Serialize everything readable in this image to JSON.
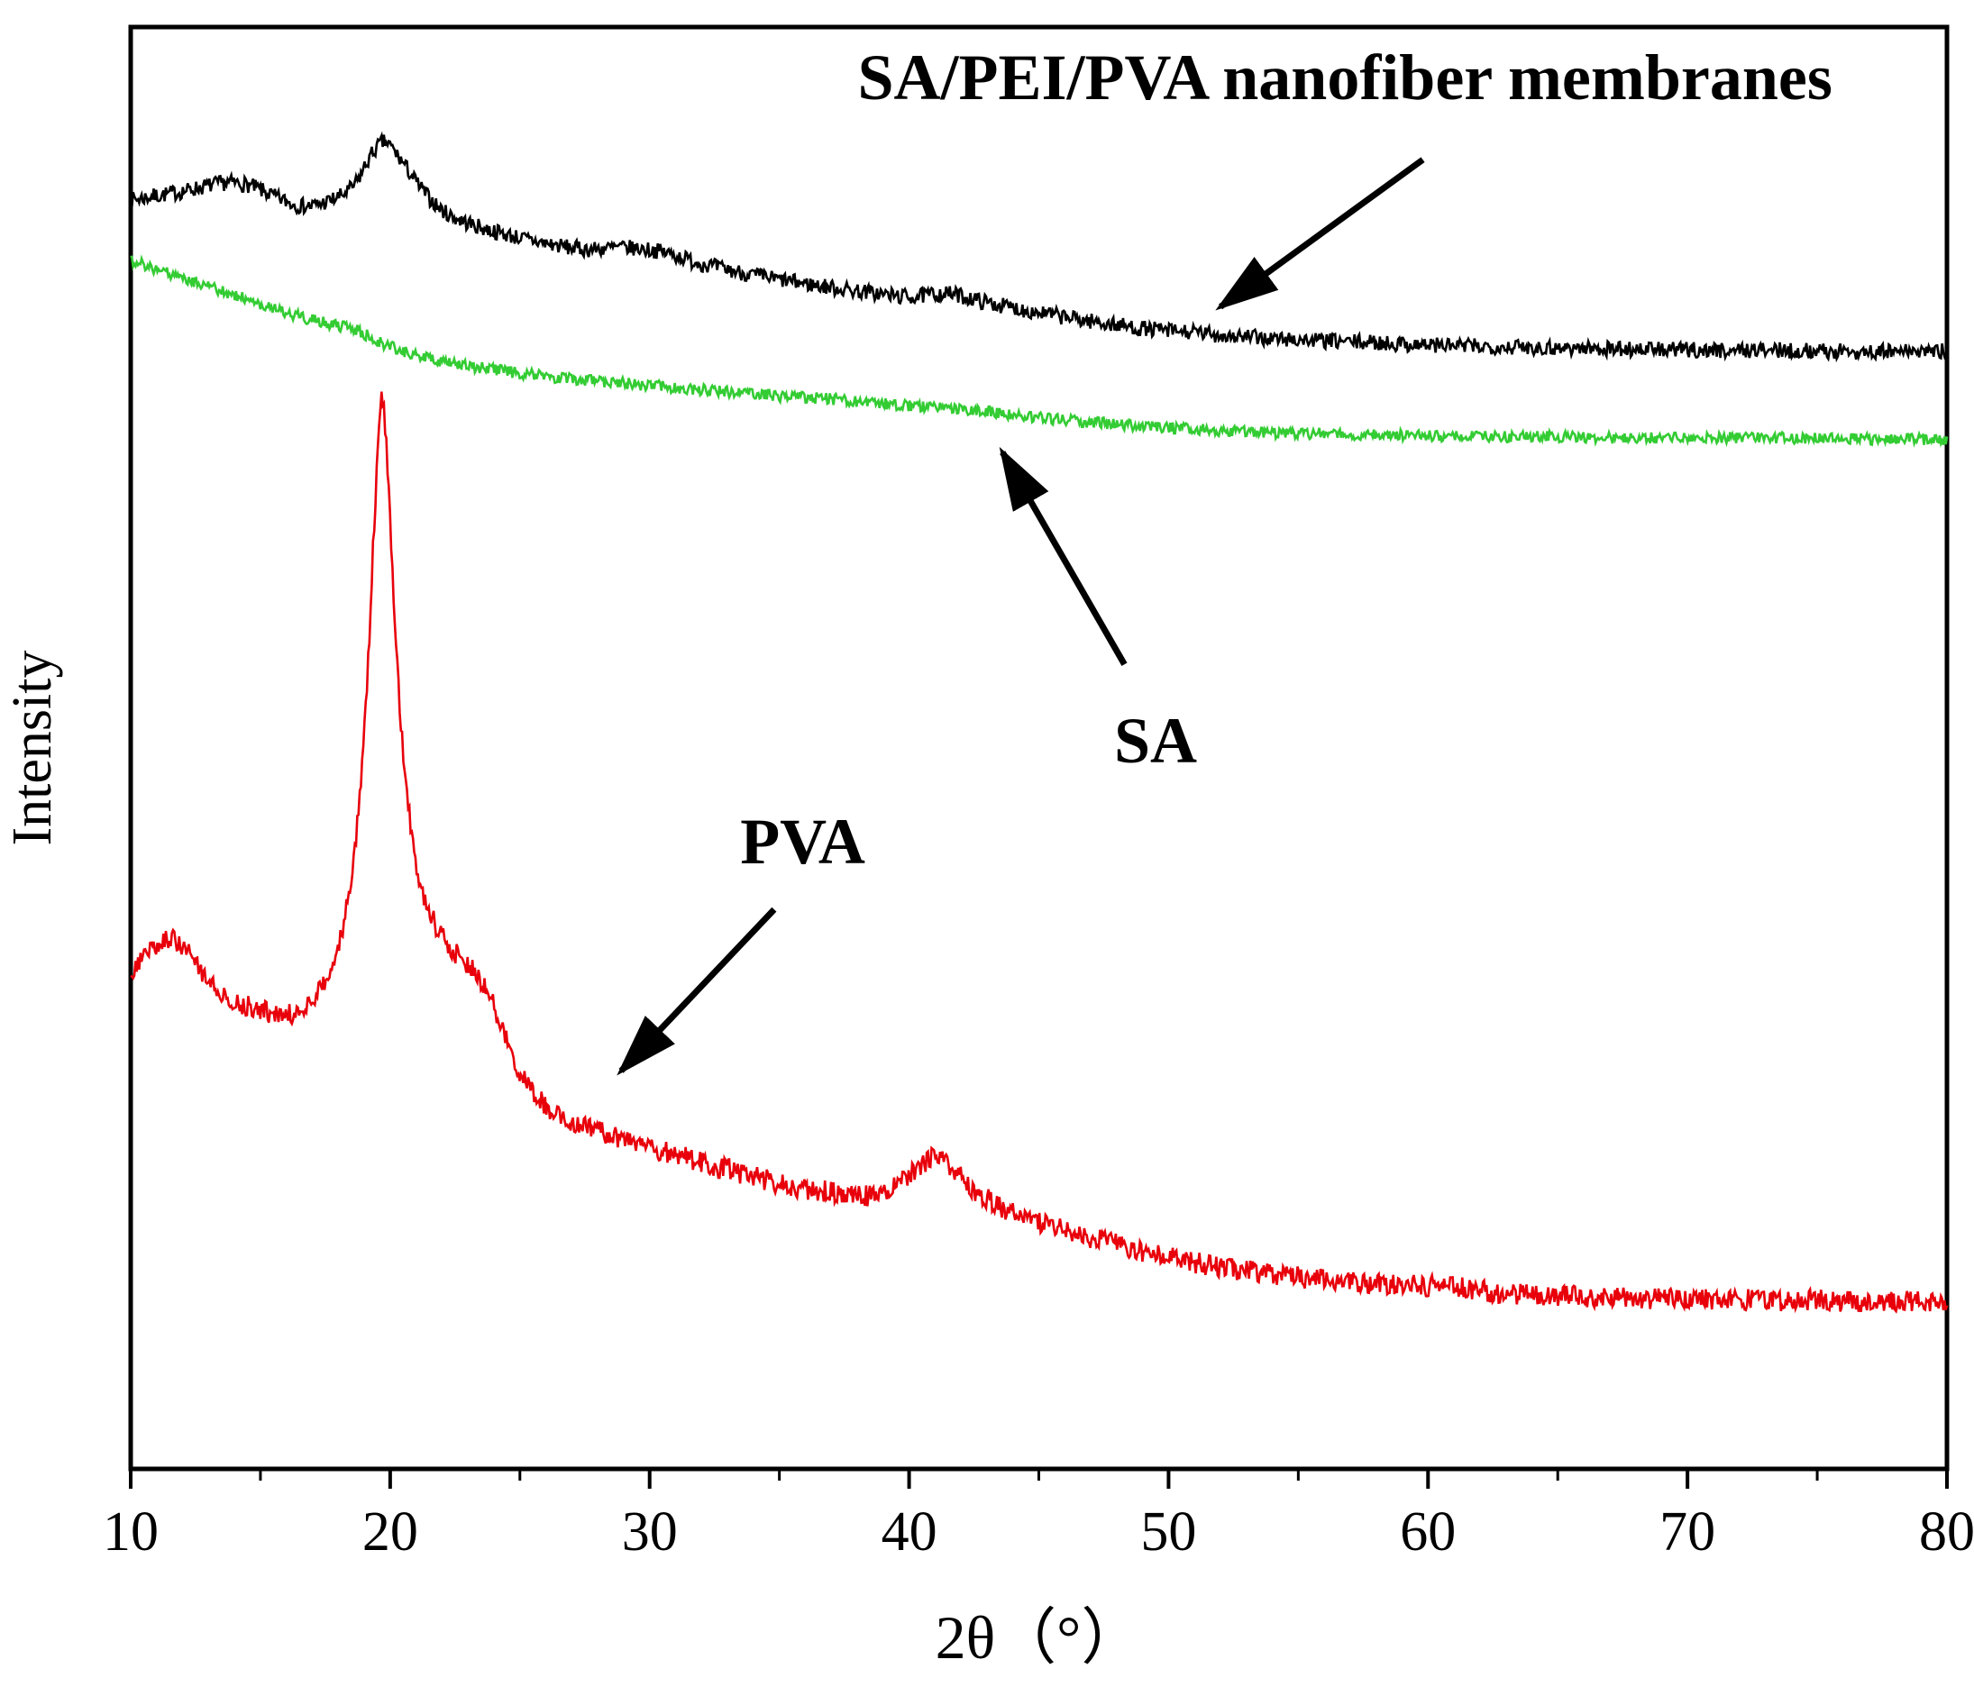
{
  "figure": {
    "background": "#ffffff"
  },
  "chart_data": {
    "type": "line",
    "title": "",
    "xlabel": "2θ（°）",
    "ylabel": "Intensity",
    "xlim": [
      10,
      80
    ],
    "ylim": [
      0,
      100
    ],
    "x_ticks": [
      10,
      20,
      30,
      40,
      50,
      60,
      70,
      80
    ],
    "x_minor_ticks": [
      15,
      25,
      35,
      45,
      55,
      65,
      75
    ],
    "grid": false,
    "legend_position": "none",
    "axis_color": "#000000",
    "series": [
      {
        "id": "sa-pei-pva",
        "name": "SA/PEI/PVA nanofiber membranes",
        "color": "#000000",
        "noise": 0.55,
        "points": [
          [
            10,
            88.0
          ],
          [
            11,
            88.3
          ],
          [
            12,
            88.6
          ],
          [
            13,
            89.0
          ],
          [
            13.8,
            89.2
          ],
          [
            14.6,
            89.0
          ],
          [
            15.6,
            88.2
          ],
          [
            16.6,
            87.6
          ],
          [
            17.6,
            87.9
          ],
          [
            18.6,
            89.0
          ],
          [
            19.3,
            91.2
          ],
          [
            19.8,
            92.0
          ],
          [
            20.4,
            90.8
          ],
          [
            21.2,
            88.8
          ],
          [
            22,
            87.3
          ],
          [
            23,
            86.4
          ],
          [
            24.5,
            85.6
          ],
          [
            26,
            85.0
          ],
          [
            27.5,
            84.6
          ],
          [
            29,
            84.7
          ],
          [
            30.5,
            84.4
          ],
          [
            32,
            83.6
          ],
          [
            34,
            82.8
          ],
          [
            36,
            82.2
          ],
          [
            38,
            81.7
          ],
          [
            40,
            81.3
          ],
          [
            41.5,
            81.5
          ],
          [
            43,
            80.9
          ],
          [
            45,
            80.2
          ],
          [
            47,
            79.6
          ],
          [
            49,
            79.1
          ],
          [
            51,
            78.8
          ],
          [
            53,
            78.5
          ],
          [
            55,
            78.3
          ],
          [
            58,
            78.1
          ],
          [
            61,
            77.9
          ],
          [
            64,
            77.8
          ],
          [
            67,
            77.7
          ],
          [
            70,
            77.6
          ],
          [
            73,
            77.6
          ],
          [
            76,
            77.5
          ],
          [
            80,
            77.5
          ]
        ]
      },
      {
        "id": "sa",
        "name": "SA",
        "color": "#33cc33",
        "noise": 0.4,
        "points": [
          [
            10,
            83.8
          ],
          [
            11,
            83.2
          ],
          [
            12,
            82.6
          ],
          [
            13,
            82.0
          ],
          [
            14,
            81.4
          ],
          [
            15,
            80.8
          ],
          [
            16,
            80.2
          ],
          [
            17,
            79.7
          ],
          [
            18,
            79.3
          ],
          [
            18.8,
            78.9
          ],
          [
            19.5,
            78.2
          ],
          [
            20.5,
            77.5
          ],
          [
            21.5,
            77.0
          ],
          [
            23,
            76.5
          ],
          [
            25,
            76.0
          ],
          [
            27,
            75.6
          ],
          [
            29,
            75.3
          ],
          [
            31,
            75.0
          ],
          [
            33,
            74.7
          ],
          [
            35,
            74.4
          ],
          [
            37,
            74.2
          ],
          [
            39,
            73.9
          ],
          [
            41,
            73.6
          ],
          [
            43,
            73.3
          ],
          [
            45,
            72.9
          ],
          [
            47,
            72.6
          ],
          [
            49,
            72.3
          ],
          [
            51,
            72.1
          ],
          [
            53,
            71.9
          ],
          [
            56,
            71.8
          ],
          [
            59,
            71.7
          ],
          [
            62,
            71.6
          ],
          [
            65,
            71.6
          ],
          [
            68,
            71.5
          ],
          [
            71,
            71.5
          ],
          [
            74,
            71.5
          ],
          [
            77,
            71.4
          ],
          [
            80,
            71.4
          ]
        ]
      },
      {
        "id": "pva",
        "name": "PVA",
        "color": "#e8000b",
        "noise": 0.75,
        "points": [
          [
            10,
            34.5
          ],
          [
            10.8,
            36.0
          ],
          [
            11.5,
            36.8
          ],
          [
            12.2,
            35.8
          ],
          [
            13,
            34.0
          ],
          [
            14,
            32.5
          ],
          [
            15,
            31.8
          ],
          [
            16,
            31.5
          ],
          [
            17,
            32.5
          ],
          [
            17.8,
            35.0
          ],
          [
            18.4,
            40.0
          ],
          [
            18.9,
            48.0
          ],
          [
            19.2,
            58.0
          ],
          [
            19.45,
            68.0
          ],
          [
            19.65,
            74.0
          ],
          [
            19.85,
            71.0
          ],
          [
            20.1,
            62.0
          ],
          [
            20.4,
            52.0
          ],
          [
            20.8,
            44.5
          ],
          [
            21.3,
            39.8
          ],
          [
            21.9,
            37.2
          ],
          [
            22.5,
            35.8
          ],
          [
            23.2,
            34.6
          ],
          [
            23.8,
            33.0
          ],
          [
            24.3,
            30.5
          ],
          [
            25,
            27.5
          ],
          [
            25.8,
            25.5
          ],
          [
            26.6,
            24.5
          ],
          [
            28,
            23.5
          ],
          [
            29.5,
            22.5
          ],
          [
            31,
            21.8
          ],
          [
            32.5,
            21.0
          ],
          [
            34,
            20.3
          ],
          [
            35.5,
            19.6
          ],
          [
            37,
            19.2
          ],
          [
            38.2,
            18.9
          ],
          [
            39.2,
            19.3
          ],
          [
            40.2,
            20.6
          ],
          [
            40.9,
            21.6
          ],
          [
            41.6,
            21.0
          ],
          [
            42.4,
            19.5
          ],
          [
            43.4,
            18.3
          ],
          [
            44.6,
            17.4
          ],
          [
            46,
            16.6
          ],
          [
            47.5,
            15.8
          ],
          [
            49,
            15.1
          ],
          [
            50.5,
            14.5
          ],
          [
            52,
            14.0
          ],
          [
            54,
            13.5
          ],
          [
            56,
            13.1
          ],
          [
            58,
            12.8
          ],
          [
            60,
            12.7
          ],
          [
            60.6,
            12.9
          ],
          [
            61.4,
            12.5
          ],
          [
            63,
            12.2
          ],
          [
            65,
            12.0
          ],
          [
            67,
            11.9
          ],
          [
            69,
            11.8
          ],
          [
            71,
            11.8
          ],
          [
            73,
            11.7
          ],
          [
            75,
            11.7
          ],
          [
            77,
            11.6
          ],
          [
            80,
            11.6
          ]
        ]
      }
    ],
    "annotations": [
      {
        "id": "sa-pei-pva-label",
        "text": "SA/PEI/PVA nanofiber membranes",
        "x": 56.8,
        "y": 95.0,
        "size": 72,
        "bold": true,
        "arrow": {
          "x1": 59.8,
          "y1": 90.8,
          "x2": 52.0,
          "y2": 80.6
        }
      },
      {
        "id": "sa-label",
        "text": "SA",
        "x": 49.5,
        "y": 49.0,
        "size": 72,
        "bold": true,
        "arrow": {
          "x1": 48.3,
          "y1": 55.8,
          "x2": 43.6,
          "y2": 70.5
        }
      },
      {
        "id": "pva-label",
        "text": "PVA",
        "x": 35.9,
        "y": 42.0,
        "size": 72,
        "bold": true,
        "arrow": {
          "x1": 34.8,
          "y1": 38.8,
          "x2": 28.9,
          "y2": 27.6
        }
      }
    ]
  }
}
